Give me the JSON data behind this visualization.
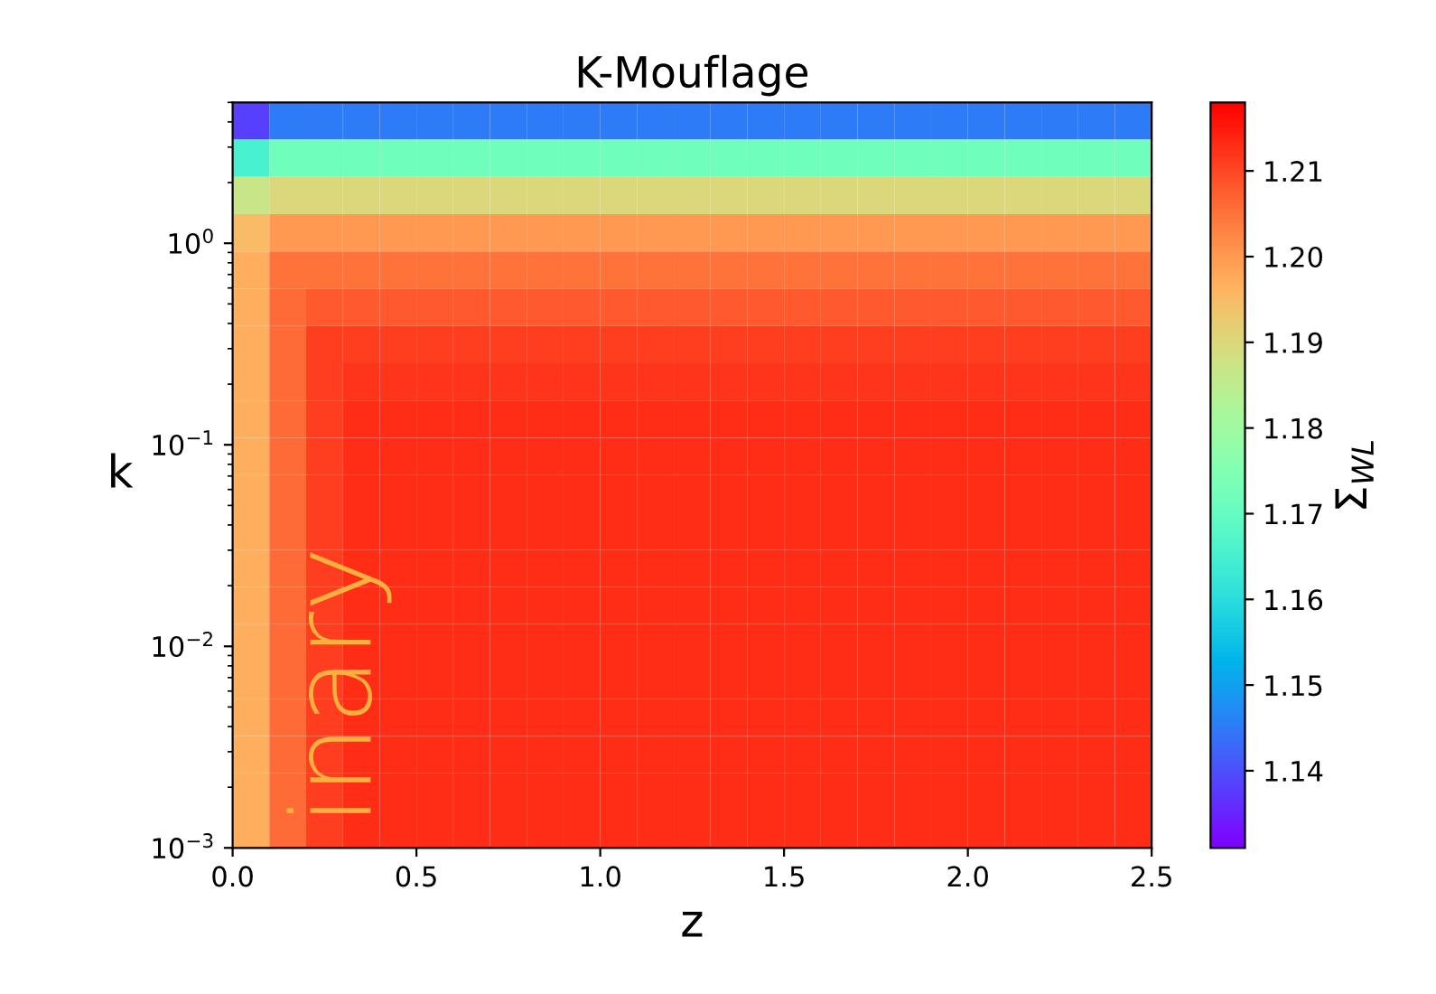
{
  "chart_data": {
    "type": "heatmap",
    "title": "K-Mouflage",
    "xlabel": "z",
    "ylabel": "k",
    "clabel": "Σ$_{WL}$",
    "cells": [
      [
        1.138,
        1.145,
        1.145,
        1.145,
        1.145,
        1.145,
        1.145,
        1.145,
        1.145,
        1.145,
        1.145,
        1.145,
        1.145,
        1.145,
        1.145,
        1.145,
        1.145,
        1.145,
        1.145,
        1.145,
        1.145,
        1.145,
        1.145,
        1.145,
        1.145
      ],
      [
        1.165,
        1.172,
        1.172,
        1.172,
        1.172,
        1.172,
        1.172,
        1.172,
        1.172,
        1.172,
        1.172,
        1.172,
        1.172,
        1.172,
        1.172,
        1.172,
        1.172,
        1.172,
        1.172,
        1.172,
        1.172,
        1.172,
        1.172,
        1.172,
        1.172
      ],
      [
        1.187,
        1.19,
        1.19,
        1.19,
        1.19,
        1.19,
        1.19,
        1.19,
        1.19,
        1.19,
        1.19,
        1.19,
        1.19,
        1.19,
        1.19,
        1.19,
        1.19,
        1.19,
        1.19,
        1.19,
        1.19,
        1.19,
        1.19,
        1.19,
        1.19
      ],
      [
        1.195,
        1.2,
        1.2,
        1.2,
        1.2,
        1.2,
        1.2,
        1.2,
        1.2,
        1.2,
        1.2,
        1.2,
        1.2,
        1.2,
        1.2,
        1.2,
        1.2,
        1.2,
        1.2,
        1.2,
        1.2,
        1.2,
        1.2,
        1.2,
        1.2
      ],
      [
        1.197,
        1.205,
        1.205,
        1.205,
        1.205,
        1.205,
        1.205,
        1.205,
        1.205,
        1.205,
        1.205,
        1.205,
        1.205,
        1.205,
        1.205,
        1.205,
        1.205,
        1.205,
        1.205,
        1.205,
        1.205,
        1.205,
        1.205,
        1.205,
        1.205
      ],
      [
        1.197,
        1.206,
        1.208,
        1.208,
        1.208,
        1.208,
        1.208,
        1.208,
        1.208,
        1.208,
        1.208,
        1.208,
        1.208,
        1.208,
        1.208,
        1.208,
        1.208,
        1.208,
        1.208,
        1.208,
        1.208,
        1.208,
        1.208,
        1.208,
        1.208
      ],
      [
        1.197,
        1.206,
        1.211,
        1.211,
        1.211,
        1.211,
        1.211,
        1.211,
        1.211,
        1.211,
        1.211,
        1.211,
        1.211,
        1.211,
        1.211,
        1.211,
        1.211,
        1.211,
        1.211,
        1.211,
        1.211,
        1.211,
        1.211,
        1.211,
        1.211
      ],
      [
        1.197,
        1.206,
        1.211,
        1.212,
        1.212,
        1.212,
        1.212,
        1.212,
        1.212,
        1.212,
        1.212,
        1.212,
        1.212,
        1.212,
        1.212,
        1.212,
        1.212,
        1.212,
        1.212,
        1.212,
        1.212,
        1.212,
        1.212,
        1.212,
        1.212
      ],
      [
        1.197,
        1.206,
        1.211,
        1.213,
        1.213,
        1.213,
        1.213,
        1.213,
        1.213,
        1.213,
        1.213,
        1.213,
        1.213,
        1.213,
        1.213,
        1.213,
        1.213,
        1.213,
        1.213,
        1.213,
        1.213,
        1.213,
        1.213,
        1.213,
        1.213
      ],
      [
        1.197,
        1.206,
        1.211,
        1.213,
        1.213,
        1.213,
        1.213,
        1.213,
        1.213,
        1.213,
        1.213,
        1.213,
        1.213,
        1.213,
        1.213,
        1.213,
        1.213,
        1.213,
        1.213,
        1.213,
        1.213,
        1.213,
        1.213,
        1.213,
        1.213
      ],
      [
        1.197,
        1.206,
        1.211,
        1.213,
        1.213,
        1.213,
        1.213,
        1.213,
        1.213,
        1.213,
        1.213,
        1.213,
        1.213,
        1.213,
        1.213,
        1.213,
        1.213,
        1.213,
        1.213,
        1.213,
        1.213,
        1.213,
        1.213,
        1.213,
        1.213
      ],
      [
        1.197,
        1.206,
        1.211,
        1.213,
        1.213,
        1.213,
        1.213,
        1.213,
        1.213,
        1.213,
        1.213,
        1.213,
        1.213,
        1.213,
        1.213,
        1.213,
        1.213,
        1.213,
        1.213,
        1.213,
        1.213,
        1.213,
        1.213,
        1.213,
        1.213
      ],
      [
        1.197,
        1.206,
        1.211,
        1.213,
        1.213,
        1.213,
        1.213,
        1.213,
        1.213,
        1.213,
        1.213,
        1.213,
        1.213,
        1.213,
        1.213,
        1.213,
        1.213,
        1.213,
        1.213,
        1.213,
        1.213,
        1.213,
        1.213,
        1.213,
        1.213
      ],
      [
        1.197,
        1.206,
        1.211,
        1.213,
        1.213,
        1.213,
        1.213,
        1.213,
        1.213,
        1.213,
        1.213,
        1.213,
        1.213,
        1.213,
        1.213,
        1.213,
        1.213,
        1.213,
        1.213,
        1.213,
        1.213,
        1.213,
        1.213,
        1.213,
        1.213
      ],
      [
        1.197,
        1.206,
        1.211,
        1.213,
        1.213,
        1.213,
        1.213,
        1.213,
        1.213,
        1.213,
        1.213,
        1.213,
        1.213,
        1.213,
        1.213,
        1.213,
        1.213,
        1.213,
        1.213,
        1.213,
        1.213,
        1.213,
        1.213,
        1.213,
        1.213
      ],
      [
        1.197,
        1.206,
        1.211,
        1.213,
        1.213,
        1.213,
        1.213,
        1.213,
        1.213,
        1.213,
        1.213,
        1.213,
        1.213,
        1.213,
        1.213,
        1.213,
        1.213,
        1.213,
        1.213,
        1.213,
        1.213,
        1.213,
        1.213,
        1.213,
        1.213
      ],
      [
        1.197,
        1.206,
        1.211,
        1.213,
        1.213,
        1.213,
        1.213,
        1.213,
        1.213,
        1.213,
        1.213,
        1.213,
        1.213,
        1.213,
        1.213,
        1.213,
        1.213,
        1.213,
        1.213,
        1.213,
        1.213,
        1.213,
        1.213,
        1.213,
        1.213
      ],
      [
        1.197,
        1.206,
        1.211,
        1.213,
        1.213,
        1.213,
        1.213,
        1.213,
        1.213,
        1.213,
        1.213,
        1.213,
        1.213,
        1.213,
        1.213,
        1.213,
        1.213,
        1.213,
        1.213,
        1.213,
        1.213,
        1.213,
        1.213,
        1.213,
        1.213
      ],
      [
        1.197,
        1.206,
        1.211,
        1.213,
        1.213,
        1.213,
        1.213,
        1.213,
        1.213,
        1.213,
        1.213,
        1.213,
        1.213,
        1.213,
        1.213,
        1.213,
        1.213,
        1.213,
        1.213,
        1.213,
        1.213,
        1.213,
        1.213,
        1.213,
        1.213
      ],
      [
        1.197,
        1.206,
        1.211,
        1.213,
        1.213,
        1.213,
        1.213,
        1.213,
        1.213,
        1.213,
        1.213,
        1.213,
        1.213,
        1.213,
        1.213,
        1.213,
        1.213,
        1.213,
        1.213,
        1.213,
        1.213,
        1.213,
        1.213,
        1.213,
        1.213
      ]
    ],
    "log": "y",
    "xlim": [
      0,
      2.5
    ],
    "ylim": [
      0.001,
      5
    ],
    "xticks": [
      {
        "value": 0,
        "label": "0.0"
      },
      0.5,
      {
        "value": 1,
        "label": "1.0"
      },
      1.5,
      {
        "value": 2,
        "label": "2.0"
      },
      2.5
    ],
    "yticks": [
      {
        "value": 0.001,
        "label": "10$^{−3}$"
      },
      {
        "value": 0.01,
        "label": "10$^{−2}$"
      },
      {
        "value": 0.1,
        "label": "10$^{−1}$"
      },
      {
        "value": 1,
        "label": "10$^{0}$"
      }
    ],
    "clim": [
      1.131,
      1.218
    ],
    "cticks": [
      1.14,
      1.15,
      1.16,
      1.17,
      1.18,
      1.19,
      {
        "value": 1.2,
        "label": "1.20"
      },
      1.21
    ],
    "annotations": [
      "inary"
    ]
  }
}
